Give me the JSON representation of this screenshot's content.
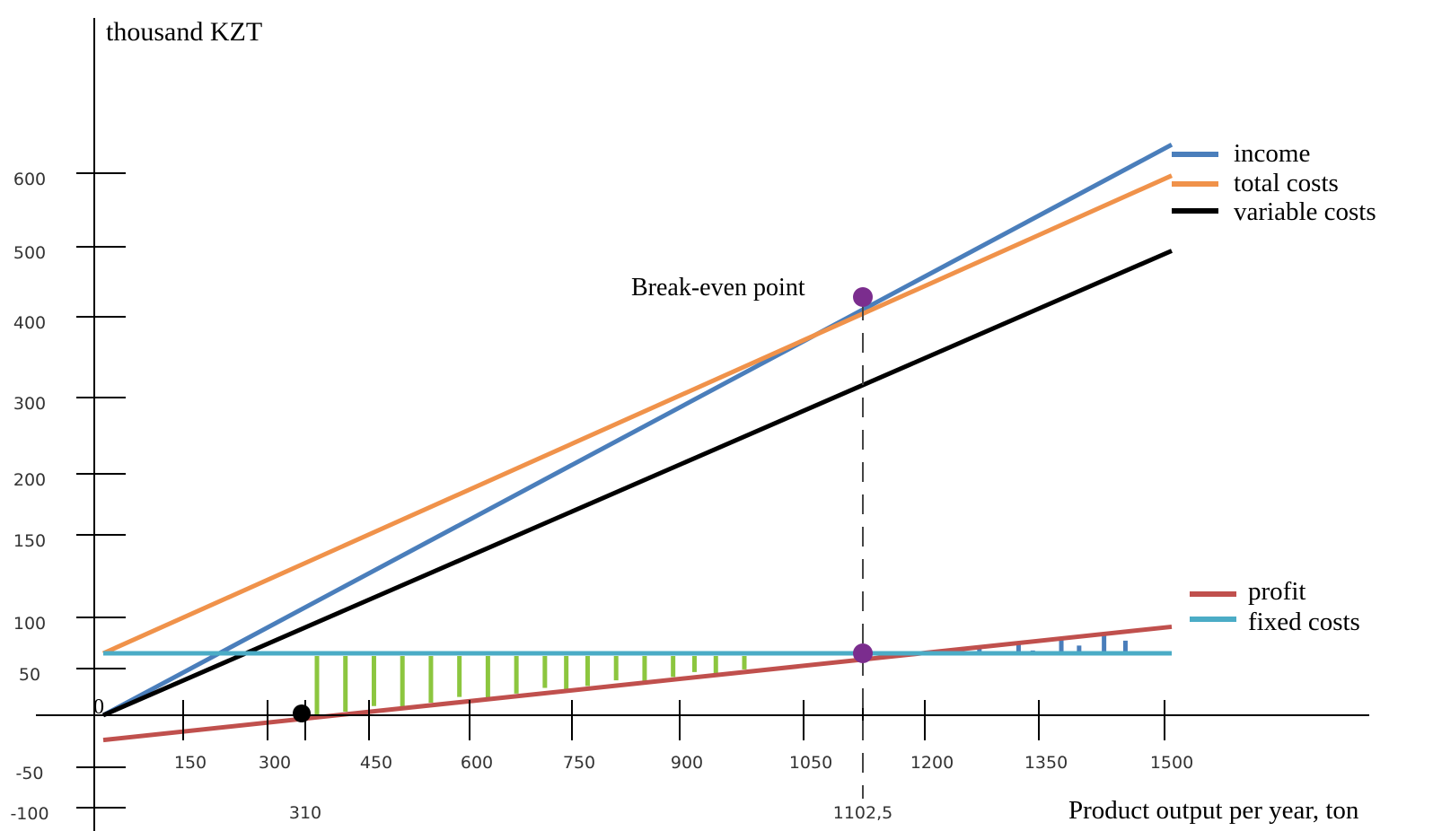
{
  "chart_data": {
    "type": "line",
    "ylabel": "thousand KZT",
    "xlabel": "Product output per year, ton",
    "origin_label": "0",
    "x_ticks": [
      "150",
      "300",
      "450",
      "600",
      "750",
      "900",
      "1050",
      "1200",
      "1350",
      "1500"
    ],
    "y_ticks": [
      "600",
      "500",
      "400",
      "300",
      "200",
      "150",
      "100",
      "50",
      "-50",
      "-100"
    ],
    "marked_x": [
      "310",
      "1102,5"
    ],
    "annotation": "Break-even point",
    "break_even": {
      "x": 1102.5,
      "y": 425
    },
    "series": [
      {
        "name": "income",
        "color": "#4a7ebb",
        "x": [
          0,
          1500
        ],
        "y": [
          0,
          645
        ]
      },
      {
        "name": "total costs",
        "color": "#f0924a",
        "x": [
          0,
          1500
        ],
        "y": [
          70,
          610
        ]
      },
      {
        "name": "variable costs",
        "color": "#000000",
        "x": [
          0,
          1500
        ],
        "y": [
          0,
          525
        ]
      },
      {
        "name": "profit",
        "color": "#c0504d",
        "x": [
          0,
          1500
        ],
        "y": [
          -28,
          100
        ]
      },
      {
        "name": "fixed costs",
        "color": "#4bacc6",
        "x": [
          0,
          1500
        ],
        "y": [
          70,
          70
        ]
      }
    ],
    "loss_hatch_color": "#8cc63f",
    "profit_hatch_color": "#4a7ebb",
    "legend_position": "right"
  }
}
